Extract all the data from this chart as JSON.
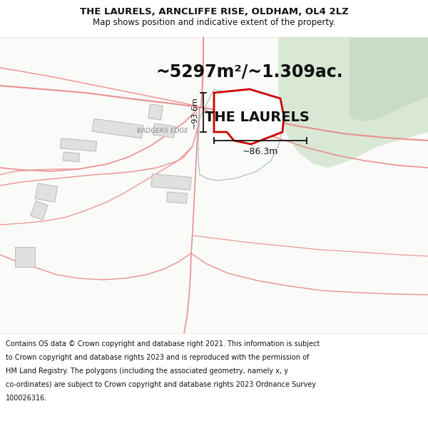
{
  "title_line1": "THE LAURELS, ARNCLIFFE RISE, OLDHAM, OL4 2LZ",
  "title_line2": "Map shows position and indicative extent of the property.",
  "area_label": "~5297m²/~1.309ac.",
  "property_label": "THE LAURELS",
  "dimension_h": "~93.6m",
  "dimension_w": "~86.3m",
  "street_label": "BADGERS EDGE",
  "footer_text": "Contains OS data © Crown copyright and database right 2021. This information is subject to Crown copyright and database rights 2023 and is reproduced with the permission of HM Land Registry. The polygons (including the associated geometry, namely x, y co-ordinates) are subject to Crown copyright and database rights 2023 Ordnance Survey 100026316.",
  "bg_color": "#fafaf8",
  "road_line_color": "#e89090",
  "road_fill_color": "#f5d0d0",
  "property_fill": "#ffffff",
  "property_edge_color": "#cc0000",
  "property_edge_lw": 2.0,
  "blue_outline_color": "#a0b8cc",
  "green_fill1": "#d8e8d5",
  "green_fill2": "#c8ddc5",
  "building_fill": "#e0e0de",
  "building_edge": "#b8b8b8",
  "dim_line_color": "#111111",
  "title_fontsize": 9.5,
  "subtitle_fontsize": 8.5,
  "area_fontsize": 17,
  "property_label_fontsize": 14,
  "dim_fontsize": 8,
  "street_fontsize": 6.5,
  "footer_fontsize": 7.0
}
